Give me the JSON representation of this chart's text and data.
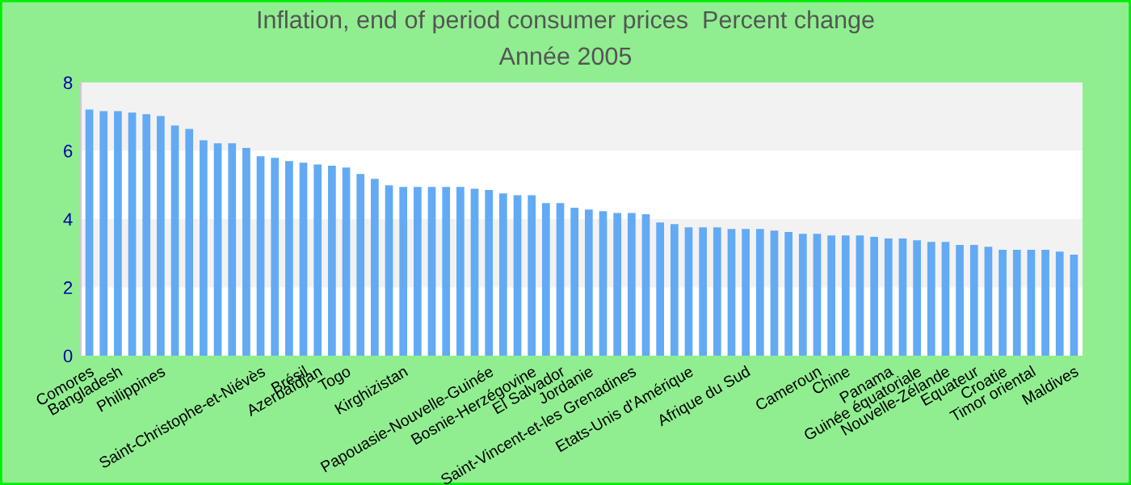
{
  "chart_data": {
    "type": "bar",
    "title": "Inflation, end of period consumer prices  Percent change",
    "subtitle": "Année 2005",
    "categories": [
      "Comores",
      null,
      "Bangladesh",
      null,
      null,
      "Philippines",
      null,
      null,
      null,
      null,
      null,
      null,
      "Saint-Christophe-et-Niévès",
      null,
      null,
      "Brésil",
      "Azerbaïdjan",
      null,
      "Togo",
      null,
      null,
      null,
      "Kirghizistan",
      null,
      null,
      null,
      null,
      null,
      "Papouasie-Nouvelle-Guinée",
      null,
      null,
      "Bosnie-Herzégovine",
      null,
      "El Salvador",
      null,
      "Jordanie",
      null,
      null,
      "Saint-Vincent-et-les Grenadines",
      null,
      null,
      null,
      "Etats-Unis d'Amérique",
      null,
      null,
      null,
      "Afrique du Sud",
      null,
      null,
      null,
      null,
      "Cameroun",
      null,
      "Chine",
      null,
      null,
      "Panama",
      null,
      "Guinée équatoriale",
      null,
      "Nouvelle-Zélande",
      null,
      "Equateur",
      null,
      "Croatie",
      null,
      "Timor oriental",
      null,
      null,
      "Maldives"
    ],
    "values": [
      7.21,
      7.16,
      7.16,
      7.12,
      7.07,
      7.02,
      6.74,
      6.64,
      6.31,
      6.22,
      6.22,
      6.08,
      5.84,
      5.79,
      5.7,
      5.65,
      5.6,
      5.56,
      5.51,
      5.32,
      5.18,
      4.99,
      4.94,
      4.94,
      4.94,
      4.94,
      4.94,
      4.89,
      4.85,
      4.75,
      4.7,
      4.7,
      4.47,
      4.47,
      4.33,
      4.28,
      4.23,
      4.18,
      4.18,
      4.14,
      3.9,
      3.85,
      3.76,
      3.76,
      3.76,
      3.71,
      3.71,
      3.71,
      3.66,
      3.62,
      3.57,
      3.57,
      3.52,
      3.52,
      3.52,
      3.48,
      3.43,
      3.43,
      3.38,
      3.33,
      3.33,
      3.24,
      3.24,
      3.19,
      3.1,
      3.1,
      3.1,
      3.1,
      3.05,
      2.96
    ],
    "color": "#63aaf4",
    "ylim": [
      0,
      8
    ],
    "yticks": [
      0,
      2,
      4,
      6,
      8
    ]
  }
}
